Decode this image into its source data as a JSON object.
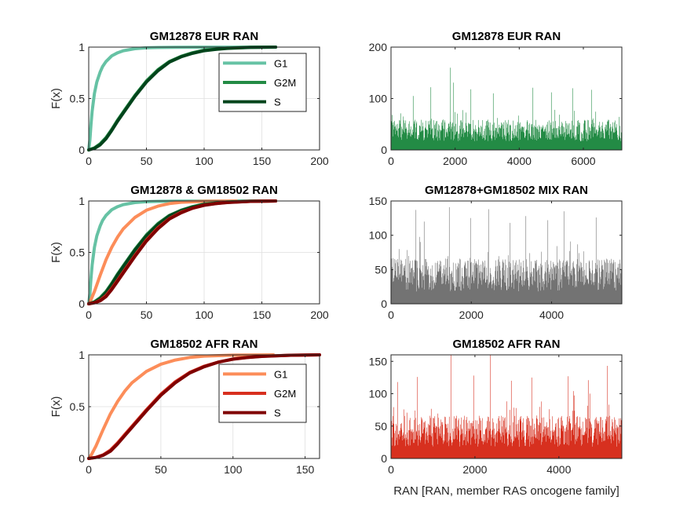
{
  "chart_data": [
    {
      "id": "cdf-eur",
      "type": "line",
      "title": "GM12878 EUR RAN",
      "ylabel": "F(x)",
      "xlabel": "",
      "xlim": [
        0,
        200
      ],
      "ylim": [
        0,
        1
      ],
      "xticks": [
        "0",
        "50",
        "100",
        "150",
        "200"
      ],
      "yticks": [
        "0",
        "0.5",
        "1"
      ],
      "grid": true,
      "legend": "top-right",
      "series": [
        {
          "name": "G1",
          "color": "#66c2a4",
          "x": [
            0,
            1,
            2,
            3,
            5,
            7,
            10,
            12,
            15,
            20,
            25,
            30,
            40,
            50,
            60,
            75,
            100,
            162
          ],
          "y": [
            0,
            0.1,
            0.25,
            0.38,
            0.55,
            0.66,
            0.76,
            0.81,
            0.86,
            0.915,
            0.945,
            0.965,
            0.985,
            0.993,
            0.996,
            0.998,
            0.999,
            1.0
          ]
        },
        {
          "name": "G2M",
          "color": "#238b45",
          "x": [
            0,
            5,
            10,
            15,
            20,
            25,
            30,
            40,
            50,
            60,
            70,
            80,
            90,
            100,
            110,
            120,
            140,
            162
          ],
          "y": [
            0,
            0.02,
            0.06,
            0.12,
            0.2,
            0.29,
            0.37,
            0.53,
            0.67,
            0.78,
            0.86,
            0.91,
            0.945,
            0.97,
            0.98,
            0.99,
            0.998,
            1.0
          ]
        },
        {
          "name": "S",
          "color": "#00441b",
          "x": [
            0,
            5,
            10,
            15,
            20,
            25,
            30,
            40,
            50,
            60,
            70,
            80,
            90,
            100,
            110,
            120,
            140,
            162
          ],
          "y": [
            0,
            0.015,
            0.05,
            0.11,
            0.19,
            0.28,
            0.36,
            0.52,
            0.66,
            0.77,
            0.855,
            0.905,
            0.94,
            0.965,
            0.978,
            0.988,
            0.997,
            1.0
          ]
        }
      ]
    },
    {
      "id": "hist-eur",
      "type": "bar",
      "title": "GM12878 EUR RAN",
      "xlim": [
        0,
        7200
      ],
      "ylim": [
        0,
        200
      ],
      "xticks": [
        "0",
        "2000",
        "4000",
        "6000"
      ],
      "yticks": [
        "0",
        "100",
        "200"
      ],
      "color": "#238b45",
      "n": 7200,
      "baseline": 38,
      "spread": 26,
      "peaks": [
        [
          1845,
          160
        ],
        [
          1240,
          122
        ],
        [
          2480,
          118
        ],
        [
          4420,
          121
        ],
        [
          4990,
          112
        ],
        [
          5660,
          120
        ],
        [
          6250,
          117
        ],
        [
          3180,
          110
        ],
        [
          690,
          105
        ],
        [
          1950,
          131
        ]
      ]
    },
    {
      "id": "cdf-mix",
      "type": "line",
      "title": "GM12878 & GM18502 RAN",
      "ylabel": "F(x)",
      "xlabel": "",
      "xlim": [
        0,
        200
      ],
      "ylim": [
        0,
        1
      ],
      "xticks": [
        "0",
        "50",
        "100",
        "150",
        "200"
      ],
      "yticks": [
        "0",
        "0.5",
        "1"
      ],
      "grid": true,
      "legend": "none",
      "series": [
        {
          "name": "",
          "color": "#66c2a4",
          "x": [
            0,
            1,
            2,
            3,
            5,
            7,
            10,
            12,
            15,
            20,
            25,
            30,
            40,
            50,
            60,
            75,
            100,
            162
          ],
          "y": [
            0,
            0.1,
            0.25,
            0.38,
            0.55,
            0.66,
            0.76,
            0.81,
            0.86,
            0.915,
            0.945,
            0.965,
            0.985,
            0.993,
            0.996,
            0.998,
            0.999,
            1.0
          ]
        },
        {
          "name": "",
          "color": "#fc8d59",
          "x": [
            0,
            2,
            5,
            10,
            15,
            20,
            25,
            30,
            40,
            50,
            60,
            70,
            80,
            100,
            120,
            128
          ],
          "y": [
            0,
            0.04,
            0.12,
            0.28,
            0.43,
            0.55,
            0.65,
            0.73,
            0.84,
            0.91,
            0.95,
            0.975,
            0.988,
            0.997,
            0.999,
            1.0
          ]
        },
        {
          "name": "",
          "color": "#238b45",
          "x": [
            0,
            5,
            10,
            15,
            20,
            25,
            30,
            40,
            50,
            60,
            70,
            80,
            90,
            100,
            110,
            120,
            140,
            162
          ],
          "y": [
            0,
            0.02,
            0.06,
            0.12,
            0.2,
            0.29,
            0.37,
            0.53,
            0.67,
            0.78,
            0.86,
            0.91,
            0.945,
            0.97,
            0.98,
            0.99,
            0.998,
            1.0
          ]
        },
        {
          "name": "",
          "color": "#00441b",
          "x": [
            0,
            5,
            10,
            15,
            20,
            25,
            30,
            40,
            50,
            60,
            70,
            80,
            90,
            100,
            110,
            120,
            140,
            162
          ],
          "y": [
            0,
            0.015,
            0.05,
            0.11,
            0.19,
            0.28,
            0.36,
            0.52,
            0.66,
            0.77,
            0.855,
            0.905,
            0.94,
            0.965,
            0.978,
            0.988,
            0.997,
            1.0
          ]
        },
        {
          "name": "",
          "color": "#d7301f",
          "x": [
            0,
            5,
            10,
            15,
            20,
            25,
            30,
            40,
            50,
            60,
            70,
            80,
            90,
            100,
            110,
            120,
            140,
            162
          ],
          "y": [
            0,
            0.01,
            0.035,
            0.08,
            0.15,
            0.23,
            0.31,
            0.47,
            0.62,
            0.74,
            0.83,
            0.89,
            0.93,
            0.96,
            0.975,
            0.986,
            0.996,
            1.0
          ]
        },
        {
          "name": "",
          "color": "#7f0000",
          "x": [
            0,
            5,
            10,
            15,
            20,
            25,
            30,
            40,
            50,
            60,
            70,
            80,
            90,
            100,
            110,
            120,
            140,
            162
          ],
          "y": [
            0,
            0.01,
            0.03,
            0.07,
            0.14,
            0.22,
            0.3,
            0.46,
            0.61,
            0.73,
            0.825,
            0.885,
            0.93,
            0.958,
            0.974,
            0.985,
            0.996,
            1.0
          ]
        }
      ]
    },
    {
      "id": "hist-mix",
      "type": "bar",
      "title": "GM12878+GM18502 MIX RAN",
      "xlim": [
        0,
        5750
      ],
      "ylim": [
        0,
        150
      ],
      "xticks": [
        "0",
        "2000",
        "4000"
      ],
      "yticks": [
        "0",
        "50",
        "100",
        "150"
      ],
      "color": "#737373",
      "n": 5750,
      "baseline": 42,
      "spread": 30,
      "peaks": [
        [
          1450,
          141
        ],
        [
          2430,
          138
        ],
        [
          615,
          137
        ],
        [
          4300,
          135
        ],
        [
          3350,
          128
        ],
        [
          1980,
          125
        ],
        [
          5100,
          126
        ],
        [
          3900,
          122
        ],
        [
          820,
          120
        ],
        [
          2960,
          118
        ]
      ]
    },
    {
      "id": "cdf-afr",
      "type": "line",
      "title": "GM18502 AFR RAN",
      "ylabel": "F(x)",
      "xlabel": "",
      "xlim": [
        0,
        160
      ],
      "ylim": [
        0,
        1
      ],
      "xticks": [
        "0",
        "50",
        "100",
        "150"
      ],
      "yticks": [
        "0",
        "0.5",
        "1"
      ],
      "grid": true,
      "legend": "top-right",
      "series": [
        {
          "name": "G1",
          "color": "#fc8d59",
          "x": [
            0,
            2,
            5,
            10,
            15,
            20,
            25,
            30,
            40,
            50,
            60,
            70,
            80,
            100,
            120,
            128
          ],
          "y": [
            0,
            0.04,
            0.12,
            0.28,
            0.43,
            0.55,
            0.65,
            0.73,
            0.84,
            0.91,
            0.95,
            0.975,
            0.988,
            0.997,
            0.999,
            1.0
          ]
        },
        {
          "name": "G2M",
          "color": "#d7301f",
          "x": [
            0,
            5,
            10,
            15,
            20,
            25,
            30,
            40,
            50,
            60,
            70,
            80,
            90,
            100,
            110,
            120,
            140,
            160
          ],
          "y": [
            0,
            0.01,
            0.035,
            0.08,
            0.15,
            0.23,
            0.31,
            0.47,
            0.62,
            0.74,
            0.83,
            0.89,
            0.93,
            0.96,
            0.975,
            0.986,
            0.996,
            1.0
          ]
        },
        {
          "name": "S",
          "color": "#7f0000",
          "x": [
            0,
            5,
            10,
            15,
            20,
            25,
            30,
            40,
            50,
            60,
            70,
            80,
            90,
            100,
            110,
            120,
            140,
            160
          ],
          "y": [
            0,
            0.01,
            0.03,
            0.07,
            0.14,
            0.22,
            0.3,
            0.46,
            0.61,
            0.73,
            0.825,
            0.885,
            0.93,
            0.958,
            0.974,
            0.985,
            0.996,
            1.0
          ]
        }
      ]
    },
    {
      "id": "hist-afr",
      "type": "bar",
      "title": "GM18502 AFR RAN",
      "xlabel": "RAN [RAN, member RAS oncogene family]",
      "xlim": [
        0,
        5500
      ],
      "ylim": [
        0,
        160
      ],
      "xticks": [
        "0",
        "2000",
        "4000"
      ],
      "yticks": [
        "0",
        "50",
        "100",
        "150"
      ],
      "color": "#d7301f",
      "n": 5500,
      "baseline": 42,
      "spread": 30,
      "peaks": [
        [
          1420,
          160
        ],
        [
          2370,
          160
        ],
        [
          5150,
          143
        ],
        [
          630,
          126
        ],
        [
          1960,
          128
        ],
        [
          3350,
          125
        ],
        [
          4220,
          127
        ],
        [
          2860,
          120
        ],
        [
          4700,
          121
        ],
        [
          150,
          118
        ]
      ]
    }
  ]
}
